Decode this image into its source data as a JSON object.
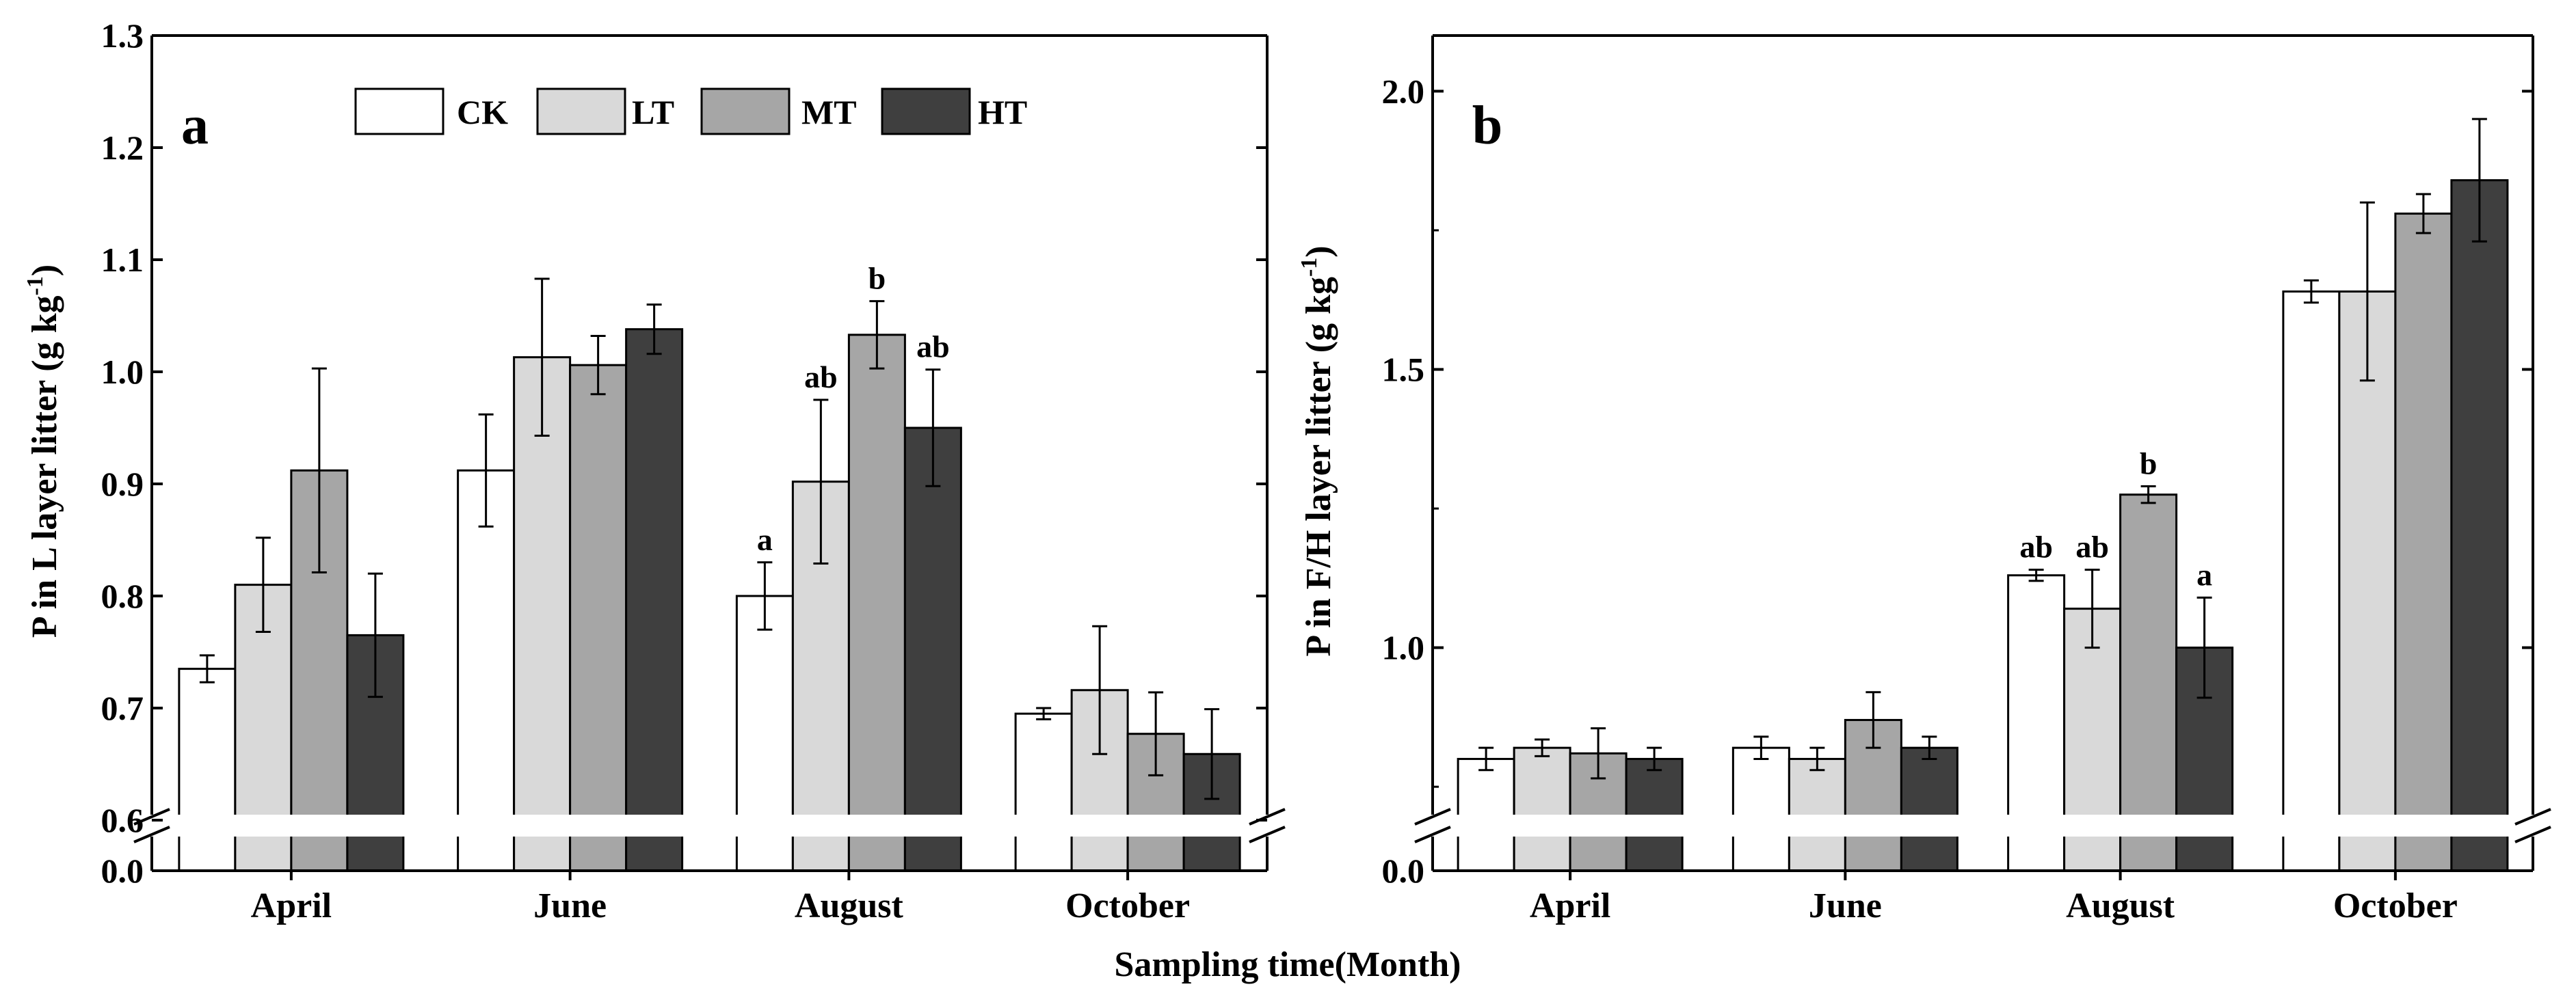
{
  "figure": {
    "xlabel": "Sampling time(Month)",
    "colors": {
      "CK": "#ffffff",
      "LT": "#d9d9d9",
      "MT": "#a6a6a6",
      "HT": "#3f3f3f",
      "axis": "#000000"
    }
  },
  "legend": {
    "entries": [
      "CK",
      "LT",
      "MT",
      "HT"
    ]
  },
  "chart_data": [
    {
      "type": "bar",
      "panel_label": "a",
      "title": "",
      "xlabel": "Sampling time(Month)",
      "ylabel": "P in L layer litter (g kg-1)",
      "ylabel_main": "P in L layer litter (g kg",
      "ylabel_sup": "-1",
      "ylabel_close": ")",
      "categories": [
        "April",
        "June",
        "August",
        "October"
      ],
      "series": [
        {
          "name": "CK",
          "values": [
            0.735,
            0.912,
            0.8,
            0.695
          ],
          "errors": [
            0.012,
            0.05,
            0.03,
            0.005
          ]
        },
        {
          "name": "LT",
          "values": [
            0.81,
            1.013,
            0.902,
            0.716
          ],
          "errors": [
            0.042,
            0.07,
            0.073,
            0.057
          ]
        },
        {
          "name": "MT",
          "values": [
            0.912,
            1.006,
            1.033,
            0.677
          ],
          "errors": [
            0.091,
            0.026,
            0.03,
            0.037
          ]
        },
        {
          "name": "HT",
          "values": [
            0.765,
            1.038,
            0.95,
            0.659
          ],
          "errors": [
            0.055,
            0.022,
            0.052,
            0.04
          ]
        }
      ],
      "significance": [
        {
          "category": "August",
          "labels": [
            "a",
            "ab",
            "b",
            "ab"
          ]
        }
      ],
      "ylim": [
        0.6,
        1.3
      ],
      "yticks": [
        "0.6",
        "0.7",
        "0.8",
        "0.9",
        "1.0",
        "1.1",
        "1.2",
        "1.3"
      ],
      "axis_break": {
        "lower_tick": "0.0",
        "upper_start": 0.6
      }
    },
    {
      "type": "bar",
      "panel_label": "b",
      "title": "",
      "xlabel": "Sampling time(Month)",
      "ylabel": "P in F/H layer litter (g kg-1)",
      "ylabel_main": "P in F/H layer litter (g kg",
      "ylabel_sup": "-1",
      "ylabel_close": ")",
      "categories": [
        "April",
        "June",
        "August",
        "October"
      ],
      "series": [
        {
          "name": "CK",
          "values": [
            0.8,
            0.82,
            1.13,
            1.64
          ],
          "errors": [
            0.02,
            0.02,
            0.01,
            0.02
          ]
        },
        {
          "name": "LT",
          "values": [
            0.82,
            0.8,
            1.07,
            1.64
          ],
          "errors": [
            0.015,
            0.02,
            0.07,
            0.16
          ]
        },
        {
          "name": "MT",
          "values": [
            0.81,
            0.87,
            1.275,
            1.78
          ],
          "errors": [
            0.045,
            0.05,
            0.015,
            0.035
          ]
        },
        {
          "name": "HT",
          "values": [
            0.8,
            0.82,
            1.0,
            1.84
          ],
          "errors": [
            0.02,
            0.02,
            0.09,
            0.11
          ]
        }
      ],
      "significance": [
        {
          "category": "August",
          "labels": [
            "ab",
            "ab",
            "b",
            "a"
          ]
        }
      ],
      "ylim": [
        0.69,
        2.1
      ],
      "yticks": [
        "1.0",
        "1.5",
        "2.0"
      ],
      "axis_break": {
        "lower_tick": "0.0",
        "upper_start": 0.69
      }
    }
  ]
}
